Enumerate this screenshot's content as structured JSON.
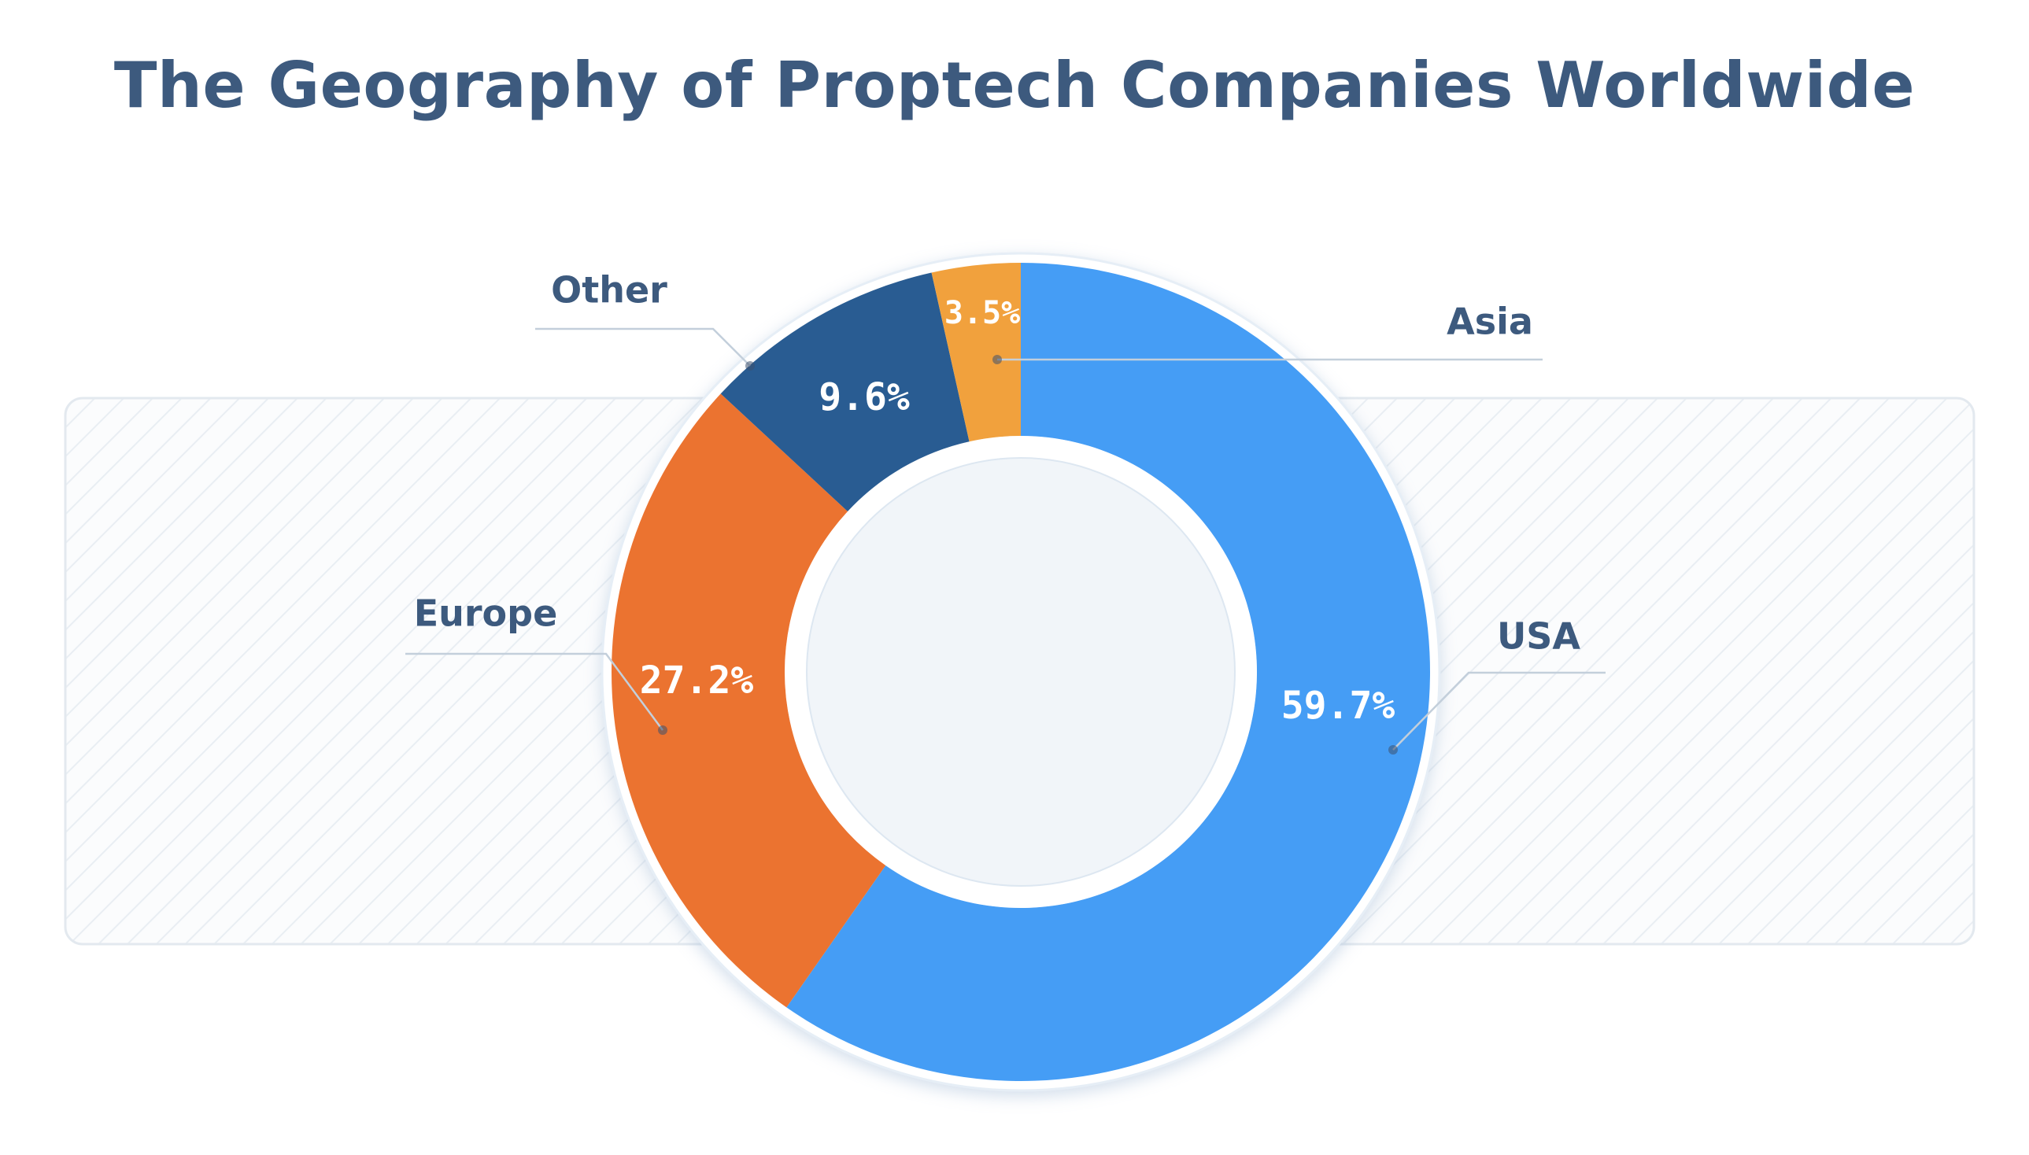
{
  "chart_data": {
    "type": "pie",
    "title": "The Geography of Proptech Companies Worldwide",
    "categories": [
      "USA",
      "Europe",
      "Other",
      "Asia"
    ],
    "values": [
      59.7,
      27.2,
      9.6,
      3.5
    ],
    "value_labels": [
      "59.7%",
      "27.2%",
      "9.6%",
      "3.5%"
    ],
    "colors": [
      "#459df5",
      "#eb7330",
      "#295c92",
      "#f1a13d"
    ],
    "donut": true,
    "start_angle_deg": 0,
    "direction": "clockwise"
  }
}
